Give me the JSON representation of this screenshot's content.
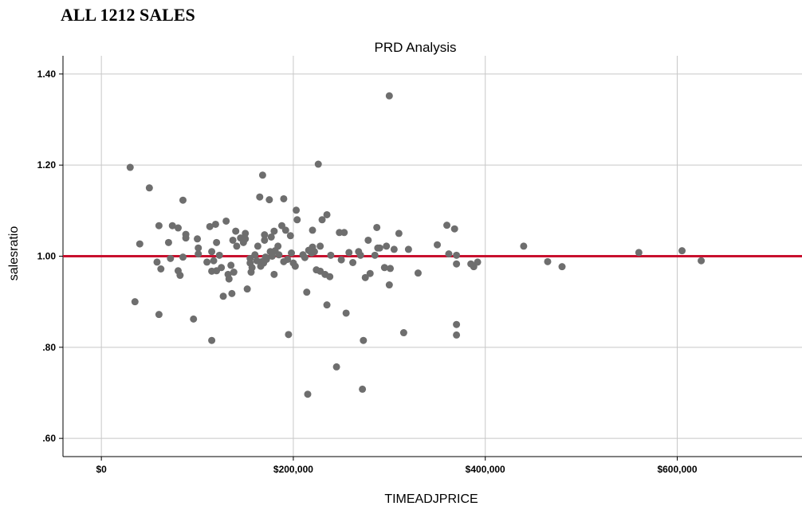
{
  "heading": "ALL 1212 SALES",
  "chart_data": {
    "type": "scatter",
    "title": "PRD Analysis",
    "xlabel": "TIMEADJPRICE",
    "ylabel": "salesratio",
    "xlim": [
      -40000,
      730000
    ],
    "ylim": [
      0.56,
      1.44
    ],
    "xticks": [
      0,
      200000,
      400000,
      600000
    ],
    "xtick_labels": [
      "$0",
      "$200,000",
      "$400,000",
      "$600,000"
    ],
    "yticks": [
      0.6,
      0.8,
      1.0,
      1.2,
      1.4
    ],
    "ytick_labels": [
      ".60",
      ".80",
      "1.00",
      "1.20",
      "1.40"
    ],
    "grid": true,
    "reference_line": {
      "y": 1.0,
      "color": "#c8102e"
    },
    "point_color": "#6e6e6e",
    "points": [
      [
        30000,
        1.195
      ],
      [
        35000,
        0.9
      ],
      [
        40000,
        1.027
      ],
      [
        50000,
        1.15
      ],
      [
        58000,
        0.987
      ],
      [
        60000,
        1.067
      ],
      [
        60000,
        0.872
      ],
      [
        62000,
        0.972
      ],
      [
        70000,
        1.03
      ],
      [
        72000,
        0.995
      ],
      [
        74000,
        1.067
      ],
      [
        80000,
        1.062
      ],
      [
        80000,
        0.968
      ],
      [
        82000,
        0.958
      ],
      [
        85000,
        1.123
      ],
      [
        85000,
        0.998
      ],
      [
        88000,
        1.048
      ],
      [
        88000,
        1.04
      ],
      [
        96000,
        0.862
      ],
      [
        100000,
        1.038
      ],
      [
        101000,
        1.018
      ],
      [
        101000,
        1.005
      ],
      [
        110000,
        0.987
      ],
      [
        113000,
        1.065
      ],
      [
        115000,
        1.01
      ],
      [
        115000,
        0.967
      ],
      [
        115000,
        0.815
      ],
      [
        117000,
        0.99
      ],
      [
        119000,
        1.07
      ],
      [
        120000,
        1.03
      ],
      [
        120000,
        0.968
      ],
      [
        123000,
        1.002
      ],
      [
        125000,
        0.975
      ],
      [
        127000,
        0.912
      ],
      [
        130000,
        1.077
      ],
      [
        132000,
        0.96
      ],
      [
        133000,
        0.95
      ],
      [
        135000,
        0.98
      ],
      [
        136000,
        0.918
      ],
      [
        137000,
        1.035
      ],
      [
        138000,
        0.965
      ],
      [
        140000,
        1.055
      ],
      [
        141000,
        1.022
      ],
      [
        145000,
        1.04
      ],
      [
        148000,
        1.03
      ],
      [
        150000,
        1.05
      ],
      [
        150000,
        1.038
      ],
      [
        152000,
        0.928
      ],
      [
        155000,
        0.995
      ],
      [
        155000,
        0.985
      ],
      [
        156000,
        0.965
      ],
      [
        157000,
        0.975
      ],
      [
        160000,
        1.003
      ],
      [
        162000,
        0.99
      ],
      [
        163000,
        1.022
      ],
      [
        165000,
        1.13
      ],
      [
        166000,
        0.978
      ],
      [
        167000,
        0.988
      ],
      [
        168000,
        1.178
      ],
      [
        169000,
        0.985
      ],
      [
        170000,
        1.047
      ],
      [
        170000,
        1.035
      ],
      [
        171000,
        0.998
      ],
      [
        172000,
        0.993
      ],
      [
        175000,
        1.124
      ],
      [
        176000,
        1.01
      ],
      [
        177000,
        1.042
      ],
      [
        178000,
        1.0
      ],
      [
        180000,
        1.055
      ],
      [
        180000,
        0.96
      ],
      [
        181000,
        1.012
      ],
      [
        184000,
        1.022
      ],
      [
        185000,
        1.003
      ],
      [
        188000,
        1.067
      ],
      [
        190000,
        1.126
      ],
      [
        190000,
        0.988
      ],
      [
        192000,
        1.057
      ],
      [
        194000,
        0.993
      ],
      [
        195000,
        0.828
      ],
      [
        197000,
        1.045
      ],
      [
        198000,
        1.007
      ],
      [
        200000,
        0.985
      ],
      [
        202000,
        0.978
      ],
      [
        203000,
        1.101
      ],
      [
        204000,
        1.08
      ],
      [
        210000,
        1.003
      ],
      [
        212000,
        0.997
      ],
      [
        214000,
        0.921
      ],
      [
        215000,
        0.697
      ],
      [
        216000,
        1.013
      ],
      [
        218000,
        1.01
      ],
      [
        219000,
        1.007
      ],
      [
        220000,
        1.02
      ],
      [
        220000,
        1.057
      ],
      [
        222000,
        1.01
      ],
      [
        224000,
        0.97
      ],
      [
        226000,
        1.202
      ],
      [
        228000,
        1.022
      ],
      [
        228000,
        0.967
      ],
      [
        230000,
        1.08
      ],
      [
        233000,
        0.96
      ],
      [
        235000,
        1.091
      ],
      [
        235000,
        0.893
      ],
      [
        238000,
        0.955
      ],
      [
        239000,
        1.002
      ],
      [
        245000,
        0.757
      ],
      [
        248000,
        1.052
      ],
      [
        250000,
        0.992
      ],
      [
        253000,
        1.052
      ],
      [
        255000,
        0.875
      ],
      [
        258000,
        1.008
      ],
      [
        262000,
        0.986
      ],
      [
        268000,
        1.01
      ],
      [
        270000,
        1.002
      ],
      [
        272000,
        0.708
      ],
      [
        273000,
        0.815
      ],
      [
        275000,
        0.953
      ],
      [
        278000,
        1.035
      ],
      [
        280000,
        0.962
      ],
      [
        285000,
        1.002
      ],
      [
        287000,
        1.063
      ],
      [
        288000,
        1.018
      ],
      [
        290000,
        1.018
      ],
      [
        295000,
        0.975
      ],
      [
        297000,
        1.022
      ],
      [
        300000,
        1.352
      ],
      [
        300000,
        0.937
      ],
      [
        301000,
        0.973
      ],
      [
        305000,
        1.015
      ],
      [
        310000,
        1.05
      ],
      [
        315000,
        0.832
      ],
      [
        320000,
        1.015
      ],
      [
        330000,
        0.963
      ],
      [
        350000,
        1.025
      ],
      [
        360000,
        1.068
      ],
      [
        362000,
        1.005
      ],
      [
        368000,
        1.06
      ],
      [
        370000,
        1.002
      ],
      [
        370000,
        0.983
      ],
      [
        370000,
        0.85
      ],
      [
        370000,
        0.827
      ],
      [
        385000,
        0.983
      ],
      [
        388000,
        0.977
      ],
      [
        392000,
        0.987
      ],
      [
        440000,
        1.022
      ],
      [
        465000,
        0.988
      ],
      [
        480000,
        0.977
      ],
      [
        560000,
        1.008
      ],
      [
        605000,
        1.012
      ],
      [
        625000,
        0.99
      ]
    ]
  }
}
